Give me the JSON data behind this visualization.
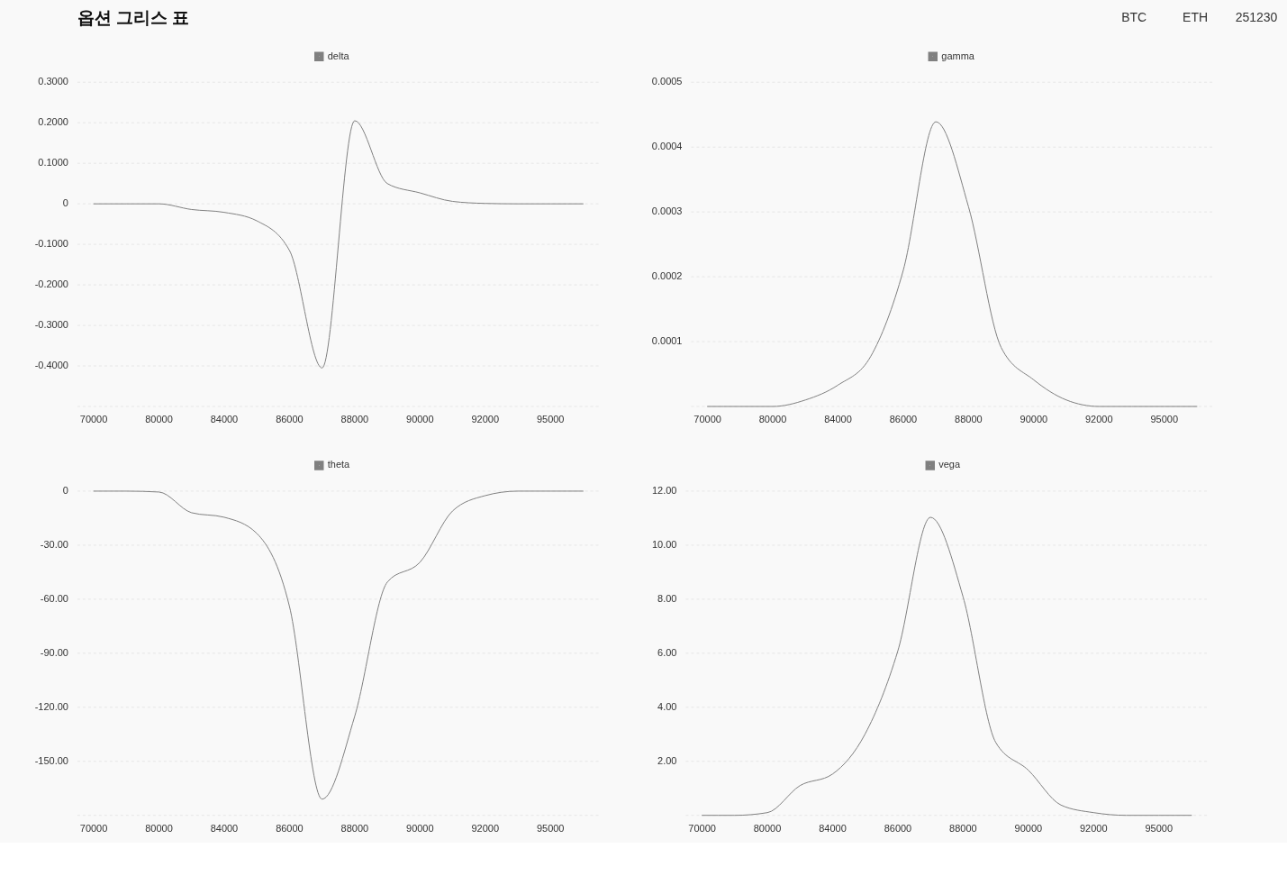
{
  "chart_data": [
    {
      "type": "other",
      "title": "옵션 그리스 표",
      "annotations": [
        "BTC",
        "ETH",
        "251230"
      ]
    },
    {
      "type": "line",
      "categories": [
        "70000",
        null,
        "80000",
        null,
        "84000",
        null,
        "86000",
        null,
        "88000",
        null,
        "90000",
        null,
        "92000",
        null,
        "95000",
        null
      ],
      "series": [
        {
          "name": "delta",
          "color": "#808080",
          "values": [
            0,
            0,
            0,
            -0.014,
            -0.021,
            -0.042,
            -0.115,
            -0.405,
            0.205,
            0.05,
            0.027,
            0.006,
            0.001,
            0,
            0,
            0
          ]
        }
      ],
      "ylim": [
        -0.5,
        0.3
      ],
      "yticks": [
        {
          "value": -0.5,
          "label": null
        },
        {
          "value": -0.4,
          "label": "-0.4000"
        },
        {
          "value": -0.3,
          "label": "-0.3000"
        },
        {
          "value": -0.2,
          "label": "-0.2000"
        },
        {
          "value": -0.1,
          "label": "-0.1000"
        },
        0,
        {
          "value": 0.1,
          "label": "0.1000"
        },
        {
          "value": 0.2,
          "label": "0.2000"
        },
        {
          "value": 0.3,
          "label": "0.3000"
        }
      ],
      "grid": "y",
      "legend": "top"
    },
    {
      "type": "line",
      "categories": [
        "70000",
        null,
        "80000",
        null,
        "84000",
        null,
        "86000",
        null,
        "88000",
        null,
        "90000",
        null,
        "92000",
        null,
        "95000",
        null
      ],
      "series": [
        {
          "name": "gamma",
          "color": "#808080",
          "values": [
            0,
            0,
            0,
            1e-05,
            3.3e-05,
            7.7e-05,
            0.00021,
            0.000439,
            0.000308,
            9.1e-05,
            4.1e-05,
            1e-05,
            0,
            0,
            0,
            0
          ]
        }
      ],
      "ylim": [
        0,
        0.0005
      ],
      "yticks": [
        {
          "value": 0,
          "label": null
        },
        0.0001,
        0.0002,
        0.0003,
        0.0004,
        0.0005
      ],
      "grid": "y",
      "legend": "top"
    },
    {
      "type": "line",
      "categories": [
        "70000",
        null,
        "80000",
        null,
        "84000",
        null,
        "86000",
        null,
        "88000",
        null,
        "90000",
        null,
        "92000",
        null,
        "95000",
        null
      ],
      "series": [
        {
          "name": "theta",
          "color": "#808080",
          "values": [
            0,
            0,
            -0.5,
            -12,
            -14.5,
            -23.5,
            -64,
            -171,
            -125,
            -50.5,
            -39.5,
            -11,
            -2.5,
            0,
            0,
            0
          ]
        }
      ],
      "ylim": [
        -180,
        0
      ],
      "yticks": [
        {
          "value": -180,
          "label": null
        },
        {
          "value": -150,
          "label": "-150.00"
        },
        {
          "value": -120,
          "label": "-120.00"
        },
        {
          "value": -90,
          "label": "-90.00"
        },
        {
          "value": -60,
          "label": "-60.00"
        },
        {
          "value": -30,
          "label": "-30.00"
        },
        0
      ],
      "grid": "y",
      "legend": "top"
    },
    {
      "type": "line",
      "categories": [
        "70000",
        null,
        "80000",
        null,
        "84000",
        null,
        "86000",
        null,
        "88000",
        null,
        "90000",
        null,
        "92000",
        null,
        "95000",
        null
      ],
      "series": [
        {
          "name": "vega",
          "color": "#808080",
          "values": [
            0,
            0,
            0.1,
            1.1,
            1.53,
            3.02,
            6.09,
            11.03,
            8.08,
            2.7,
            1.67,
            0.38,
            0.1,
            0,
            0,
            0
          ]
        }
      ],
      "ylim": [
        0,
        12
      ],
      "yticks": [
        {
          "value": 0,
          "label": null
        },
        {
          "value": 2,
          "label": "2.00"
        },
        {
          "value": 4,
          "label": "4.00"
        },
        {
          "value": 6,
          "label": "6.00"
        },
        {
          "value": 8,
          "label": "8.00"
        },
        {
          "value": 10,
          "label": "10.00"
        },
        {
          "value": 12,
          "label": "12.00"
        }
      ],
      "grid": "y",
      "legend": "top"
    }
  ]
}
